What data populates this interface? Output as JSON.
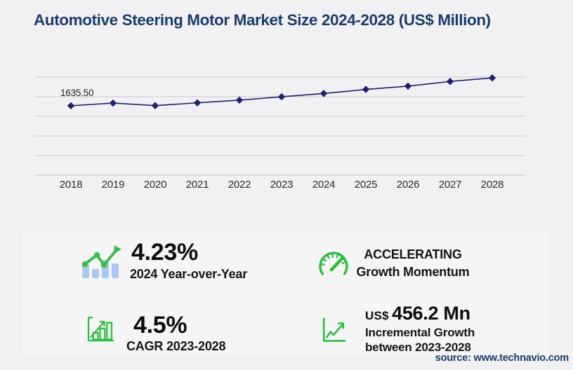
{
  "chart_data": {
    "type": "line",
    "title": "Automotive Steering Motor Market Size 2024-2028 (US$ Million)",
    "x": [
      "2018",
      "2019",
      "2020",
      "2021",
      "2022",
      "2023",
      "2024",
      "2025",
      "2026",
      "2027",
      "2028"
    ],
    "series": [
      {
        "name": "Market size (US$ Million)",
        "values": [
          1635.5,
          1700,
          1638,
          1706,
          1770,
          1853.1,
          1931.5,
          2030,
          2110,
          2225,
          2309.3
        ]
      }
    ],
    "first_point_label": "1635.50",
    "ylim": [
      -50,
      2330
    ],
    "gridline_count": 6,
    "grid": "horizontal-only",
    "legend": "none",
    "marker": "diamond",
    "xlabel": "",
    "ylabel": ""
  },
  "colors": {
    "title_navy": "#1d3b6b",
    "line_indigo": "#231f70",
    "grid_gray": "#c9c9cc",
    "axis_gray": "#c2c2c6",
    "icon_green": "#2ebd41",
    "bar_blue": "#a9c9f1",
    "panel_bg": "#f5f5f6",
    "page_bg": "#f1f1f3"
  },
  "stats": {
    "yoy": {
      "value": "4.23%",
      "label": "2024 Year-over-Year",
      "icon": "bar-line-growth-icon"
    },
    "cagr": {
      "value": "4.5%",
      "label": "CAGR 2023-2028",
      "icon": "growth-bars-icon"
    },
    "momentum": {
      "line1": "ACCELERATING",
      "line2": "Growth Momentum",
      "icon": "speedometer-icon"
    },
    "incremental": {
      "currency": "US$",
      "value": "456.2 Mn",
      "line1": "Incremental Growth",
      "line2": "between 2023-2028",
      "icon": "chart-arrow-icon"
    }
  },
  "footer": {
    "source": "source: www.technavio.com"
  }
}
